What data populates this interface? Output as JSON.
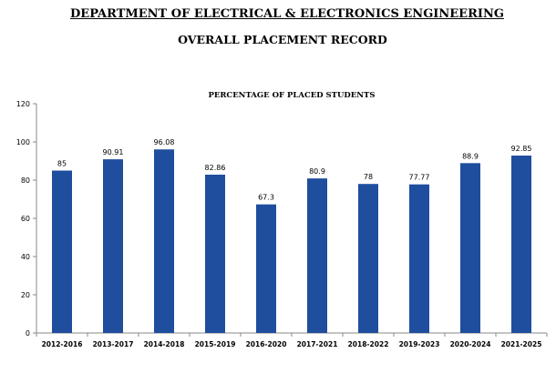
{
  "page": {
    "department_title": "DEPARTMENT OF ELECTRICAL & ELECTRONICS ENGINEERING",
    "record_title": "OVERALL PLACEMENT RECORD"
  },
  "chart_data": {
    "type": "bar",
    "title": "PERCENTAGE OF PLACED STUDENTS",
    "xlabel": "",
    "ylabel": "",
    "categories": [
      "2012-2016",
      "2013-2017",
      "2014-2018",
      "2015-2019",
      "2016-2020",
      "2017-2021",
      "2018-2022",
      "2019-2023",
      "2020-2024",
      "2021-2025"
    ],
    "values": [
      85,
      90.91,
      96.08,
      82.86,
      67.3,
      80.9,
      78,
      77.77,
      88.9,
      92.85
    ],
    "value_labels": [
      "85",
      "90.91",
      "96.08",
      "82.86",
      "67.3",
      "80.9",
      "78",
      "77.77",
      "88.9",
      "92.85"
    ],
    "ylim": [
      0,
      120
    ],
    "yticks": [
      0,
      20,
      40,
      60,
      80,
      100,
      120
    ],
    "grid": false,
    "legend": "none",
    "bar_color": "#1f4e9e"
  }
}
